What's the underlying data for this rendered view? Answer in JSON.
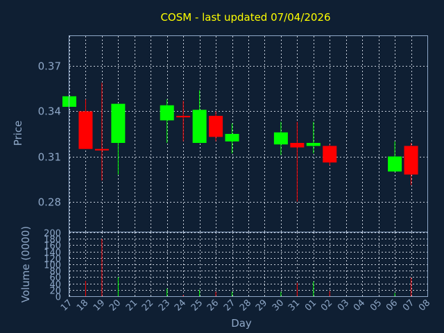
{
  "chart_data": {
    "type": "candlestick",
    "title": "COSM - last updated 07/04/2026",
    "xlabel": "Day",
    "colors": {
      "up": "#00ff00",
      "down": "#ff0000",
      "title": "#ffff00",
      "axis": "#8fa8c8",
      "background": "#0f1f33"
    },
    "grid": true,
    "price_panel": {
      "ylabel": "Price",
      "ylim": [
        0.26,
        0.39
      ],
      "yticks": [
        "0.28",
        "0.31",
        "0.34",
        "0.37"
      ]
    },
    "volume_panel": {
      "ylabel": "Volume (0000)",
      "ylim": [
        0,
        200
      ],
      "yticks": [
        "0",
        "20",
        "40",
        "60",
        "80",
        "100",
        "120",
        "140",
        "160",
        "180",
        "200"
      ]
    },
    "x_labels": [
      "17",
      "18",
      "19",
      "20",
      "21",
      "22",
      "23",
      "24",
      "25",
      "26",
      "27",
      "28",
      "29",
      "30",
      "31",
      "01",
      "02",
      "03",
      "04",
      "05",
      "06",
      "07",
      "08"
    ],
    "candles": [
      {
        "day": "17",
        "open": 0.343,
        "high": 0.35,
        "low": 0.343,
        "close": 0.35
      },
      {
        "day": "18",
        "open": 0.34,
        "high": 0.348,
        "low": 0.315,
        "close": 0.315
      },
      {
        "day": "19",
        "open": 0.315,
        "high": 0.359,
        "low": 0.294,
        "close": 0.314
      },
      {
        "day": "20",
        "open": 0.319,
        "high": 0.345,
        "low": 0.298,
        "close": 0.345
      },
      {
        "day": "23",
        "open": 0.334,
        "high": 0.348,
        "low": 0.319,
        "close": 0.344
      },
      {
        "day": "24",
        "open": 0.337,
        "high": 0.347,
        "low": 0.32,
        "close": 0.336
      },
      {
        "day": "25",
        "open": 0.319,
        "high": 0.354,
        "low": 0.319,
        "close": 0.341
      },
      {
        "day": "26",
        "open": 0.337,
        "high": 0.34,
        "low": 0.32,
        "close": 0.323
      },
      {
        "day": "27",
        "open": 0.32,
        "high": 0.332,
        "low": 0.312,
        "close": 0.325
      },
      {
        "day": "30",
        "open": 0.318,
        "high": 0.333,
        "low": 0.311,
        "close": 0.326
      },
      {
        "day": "31",
        "open": 0.319,
        "high": 0.333,
        "low": 0.28,
        "close": 0.316
      },
      {
        "day": "01",
        "open": 0.317,
        "high": 0.333,
        "low": 0.312,
        "close": 0.319
      },
      {
        "day": "02",
        "open": 0.317,
        "high": 0.318,
        "low": 0.304,
        "close": 0.306
      },
      {
        "day": "06",
        "open": 0.3,
        "high": 0.32,
        "low": 0.3,
        "close": 0.31
      },
      {
        "day": "07",
        "open": 0.317,
        "high": 0.319,
        "low": 0.291,
        "close": 0.298
      }
    ],
    "volumes": [
      {
        "day": "17",
        "value": 0,
        "color": "up"
      },
      {
        "day": "18",
        "value": 48,
        "color": "down"
      },
      {
        "day": "19",
        "value": 180,
        "color": "down"
      },
      {
        "day": "20",
        "value": 60,
        "color": "up"
      },
      {
        "day": "23",
        "value": 24,
        "color": "up"
      },
      {
        "day": "24",
        "value": 4,
        "color": "down"
      },
      {
        "day": "25",
        "value": 20,
        "color": "up"
      },
      {
        "day": "26",
        "value": 14,
        "color": "down"
      },
      {
        "day": "27",
        "value": 14,
        "color": "up"
      },
      {
        "day": "30",
        "value": 14,
        "color": "up"
      },
      {
        "day": "31",
        "value": 42,
        "color": "down"
      },
      {
        "day": "01",
        "value": 46,
        "color": "up"
      },
      {
        "day": "02",
        "value": 16,
        "color": "down"
      },
      {
        "day": "06",
        "value": 10,
        "color": "up"
      },
      {
        "day": "07",
        "value": 58,
        "color": "down"
      }
    ]
  }
}
